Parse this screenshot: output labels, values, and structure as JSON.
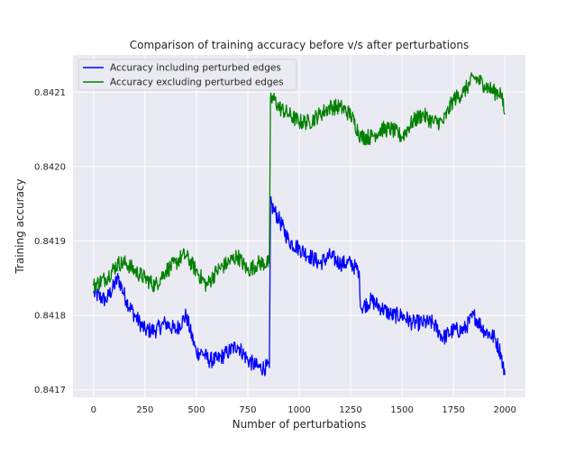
{
  "chart_data": {
    "type": "line",
    "title": "Comparison of training accuracy before v/s after perturbations",
    "xlabel": "Number of perturbations",
    "ylabel": "Training accuracy",
    "xlim": [
      -100,
      2100
    ],
    "ylim": [
      0.84169,
      0.84215
    ],
    "xticks": [
      0,
      250,
      500,
      750,
      1000,
      1250,
      1500,
      1750,
      2000
    ],
    "yticks": [
      0.8417,
      0.8418,
      0.8419,
      0.842,
      0.8421
    ],
    "grid": true,
    "legend_position": "top-left",
    "background": "#eaeaf2",
    "series": [
      {
        "name": "Accuracy including perturbed edges",
        "color": "#0000ff",
        "x": [
          0,
          60,
          120,
          160,
          200,
          250,
          300,
          350,
          400,
          450,
          500,
          530,
          560,
          600,
          650,
          700,
          750,
          800,
          855,
          860,
          880,
          900,
          950,
          1000,
          1050,
          1100,
          1150,
          1200,
          1250,
          1290,
          1300,
          1350,
          1400,
          1450,
          1500,
          1550,
          1600,
          1650,
          1700,
          1750,
          1800,
          1850,
          1900,
          1950,
          1980,
          2000
        ],
        "y": [
          0.84183,
          0.84182,
          0.84185,
          0.84182,
          0.8418,
          0.84178,
          0.84178,
          0.84179,
          0.84178,
          0.8418,
          0.84175,
          0.84175,
          0.84174,
          0.84174,
          0.84175,
          0.84176,
          0.84174,
          0.84173,
          0.84173,
          0.84195,
          0.84194,
          0.84193,
          0.8419,
          0.84189,
          0.84188,
          0.84187,
          0.84188,
          0.84187,
          0.84187,
          0.84186,
          0.84181,
          0.84182,
          0.84181,
          0.8418,
          0.8418,
          0.84179,
          0.84179,
          0.84179,
          0.84177,
          0.84178,
          0.84178,
          0.8418,
          0.84178,
          0.84177,
          0.84175,
          0.84172
        ]
      },
      {
        "name": "Accuracy excluding perturbed edges",
        "color": "#008000",
        "x": [
          0,
          60,
          120,
          160,
          200,
          250,
          300,
          350,
          400,
          430,
          450,
          500,
          550,
          600,
          650,
          700,
          750,
          800,
          855,
          860,
          880,
          900,
          950,
          1000,
          1050,
          1100,
          1150,
          1200,
          1250,
          1300,
          1350,
          1400,
          1450,
          1500,
          1550,
          1600,
          1650,
          1700,
          1750,
          1800,
          1850,
          1900,
          1950,
          1980,
          2000
        ],
        "y": [
          0.84184,
          0.84185,
          0.84187,
          0.84187,
          0.84186,
          0.84185,
          0.84184,
          0.84186,
          0.84187,
          0.84188,
          0.84188,
          0.84186,
          0.84184,
          0.84186,
          0.84187,
          0.84188,
          0.84186,
          0.84187,
          0.84187,
          0.84209,
          0.84209,
          0.84208,
          0.84207,
          0.84206,
          0.84206,
          0.84207,
          0.84208,
          0.84208,
          0.84207,
          0.84204,
          0.84204,
          0.84205,
          0.84205,
          0.84204,
          0.84206,
          0.84207,
          0.84206,
          0.84206,
          0.84209,
          0.8421,
          0.84212,
          0.84211,
          0.8421,
          0.8421,
          0.84207
        ]
      }
    ]
  }
}
